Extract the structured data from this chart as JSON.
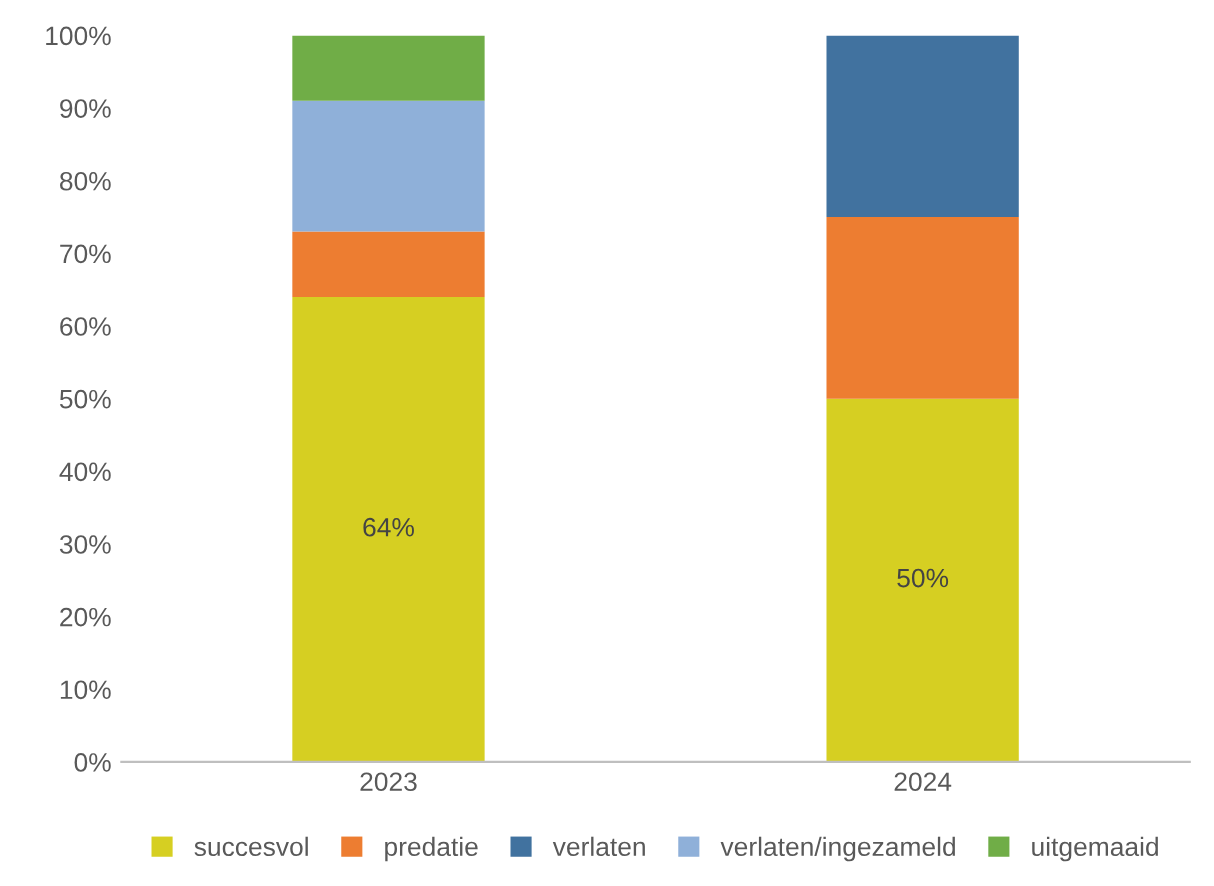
{
  "chart_data": {
    "type": "bar",
    "stacked": true,
    "categories": [
      "2023",
      "2024"
    ],
    "series": [
      {
        "name": "succesvol",
        "color": "#d6cf22",
        "values": [
          64,
          50
        ],
        "value_labels": [
          "64%",
          "50%"
        ]
      },
      {
        "name": "predatie",
        "color": "#ed7d31",
        "values": [
          9,
          25
        ]
      },
      {
        "name": "verlaten",
        "color": "#41729f",
        "values": [
          0,
          25
        ]
      },
      {
        "name": "verlaten/ingezameld",
        "color": "#8fb0d9",
        "values": [
          18,
          0
        ]
      },
      {
        "name": "uitgemaaid",
        "color": "#70ad47",
        "values": [
          9,
          0
        ]
      }
    ],
    "ylim": [
      0,
      100
    ],
    "yticks": [
      {
        "value": 0,
        "label": "0%"
      },
      {
        "value": 10,
        "label": "10%"
      },
      {
        "value": 20,
        "label": "20%"
      },
      {
        "value": 30,
        "label": "30%"
      },
      {
        "value": 40,
        "label": "40%"
      },
      {
        "value": 50,
        "label": "50%"
      },
      {
        "value": 60,
        "label": "60%"
      },
      {
        "value": 70,
        "label": "70%"
      },
      {
        "value": 80,
        "label": "80%"
      },
      {
        "value": 90,
        "label": "90%"
      },
      {
        "value": 100,
        "label": "100%"
      }
    ],
    "grid": false,
    "legend": "bottom"
  }
}
